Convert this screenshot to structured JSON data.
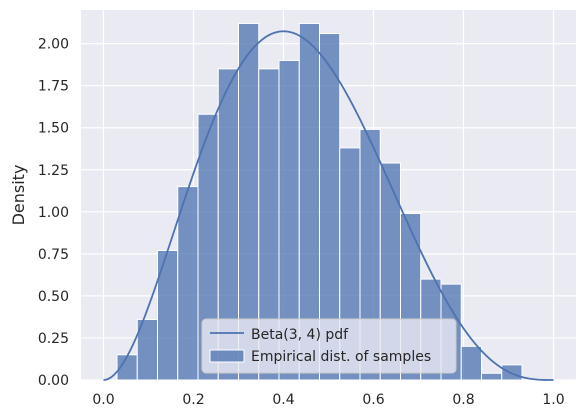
{
  "chart_data": {
    "type": "histogram",
    "ylabel": "Density",
    "xlim": [
      -0.05,
      1.05
    ],
    "ylim": [
      0,
      2.2
    ],
    "xticks": [
      0.0,
      0.2,
      0.4,
      0.6,
      0.8,
      1.0
    ],
    "xtick_labels": [
      "0.0",
      "0.2",
      "0.4",
      "0.6",
      "0.8",
      "1.0"
    ],
    "yticks": [
      0.0,
      0.25,
      0.5,
      0.75,
      1.0,
      1.25,
      1.5,
      1.75,
      2.0
    ],
    "ytick_labels": [
      "0.00",
      "0.25",
      "0.50",
      "0.75",
      "1.00",
      "1.25",
      "1.50",
      "1.75",
      "2.00"
    ],
    "grid": true,
    "legend_position": "lower-center",
    "bin_edges": [
      0.03,
      0.075,
      0.12,
      0.165,
      0.21,
      0.255,
      0.3,
      0.345,
      0.39,
      0.435,
      0.48,
      0.525,
      0.57,
      0.615,
      0.66,
      0.705,
      0.75,
      0.795,
      0.84,
      0.885,
      0.93
    ],
    "bar_values": [
      0.15,
      0.36,
      0.77,
      1.15,
      1.58,
      1.85,
      2.12,
      1.85,
      1.9,
      2.12,
      2.06,
      1.38,
      1.49,
      1.29,
      0.99,
      0.6,
      0.57,
      0.2,
      0.04,
      0.09
    ],
    "bar_color": "#4c72b0",
    "line_color": "#4c72b0",
    "pdf": {
      "distribution": "Beta",
      "a": 3,
      "b": 4
    },
    "legend": [
      {
        "label": "Beta(3, 4) pdf",
        "kind": "line"
      },
      {
        "label": "Empirical dist. of samples",
        "kind": "patch"
      }
    ]
  }
}
